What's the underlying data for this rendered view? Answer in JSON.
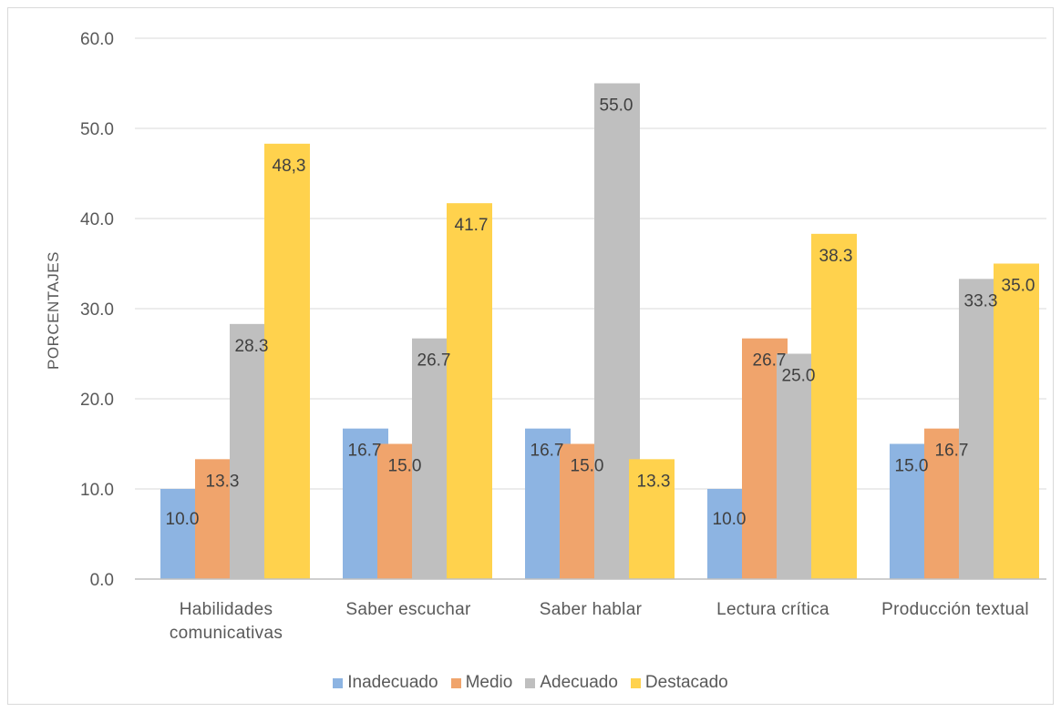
{
  "chart_data": {
    "type": "bar",
    "ylabel": "PORCENTAJES",
    "ylim": [
      0,
      60
    ],
    "yticks": [
      "0.0",
      "10.0",
      "20.0",
      "30.0",
      "40.0",
      "50.0",
      "60.0"
    ],
    "grid": true,
    "legend_position": "bottom",
    "categories": [
      [
        "Habilidades",
        "comunicativas"
      ],
      [
        "Saber escuchar"
      ],
      [
        "Saber hablar"
      ],
      [
        "Lectura crítica"
      ],
      [
        "Producción textual"
      ]
    ],
    "series": [
      {
        "name": "Inadecuado",
        "color": "#8db4e2",
        "values": [
          10.0,
          16.7,
          16.7,
          10.0,
          15.0
        ],
        "labels": [
          "10.0",
          "16.7",
          "16.7",
          "10.0",
          "15.0"
        ]
      },
      {
        "name": "Medio",
        "color": "#f0a46c",
        "values": [
          13.3,
          15.0,
          15.0,
          26.7,
          16.7
        ],
        "labels": [
          "13.3",
          "15.0",
          "15.0",
          "26.7",
          "16.7"
        ]
      },
      {
        "name": "Adecuado",
        "color": "#bfbfbf",
        "values": [
          28.3,
          26.7,
          55.0,
          25.0,
          33.3
        ],
        "labels": [
          "28.3",
          "26.7",
          "55.0",
          "25.0",
          "33.3"
        ]
      },
      {
        "name": "Destacado",
        "color": "#ffd24d",
        "values": [
          48.3,
          41.7,
          13.3,
          38.3,
          35.0
        ],
        "labels": [
          "48,3",
          "41.7",
          "13.3",
          "38.3",
          "35.0"
        ]
      }
    ]
  }
}
